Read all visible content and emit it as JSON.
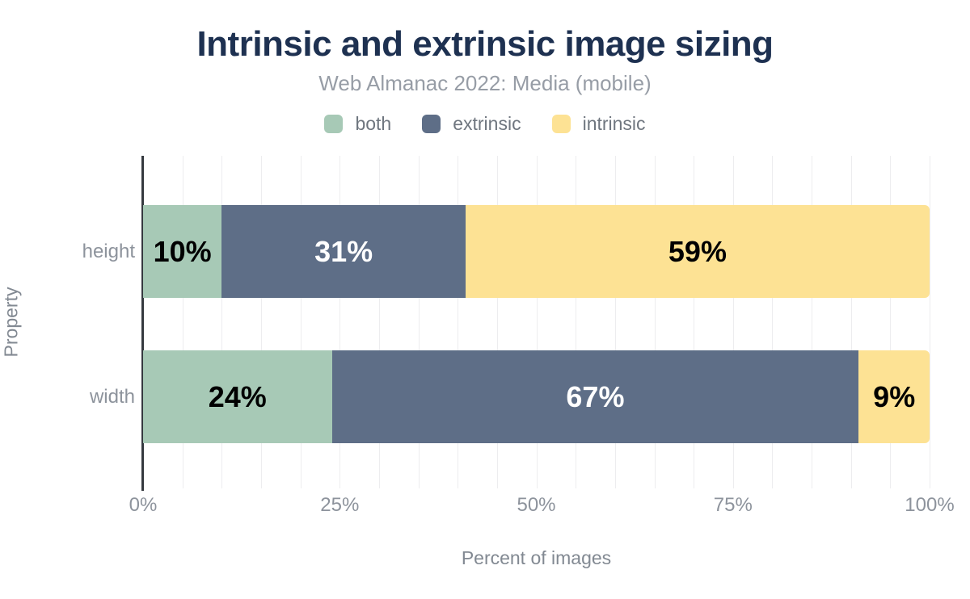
{
  "title": "Intrinsic and extrinsic image sizing",
  "subtitle": "Web Almanac 2022: Media (mobile)",
  "legend": {
    "items": [
      {
        "label": "both",
        "color": "#a7c9b6"
      },
      {
        "label": "extrinsic",
        "color": "#5e6e87"
      },
      {
        "label": "intrinsic",
        "color": "#fde294"
      }
    ]
  },
  "chart_data": {
    "type": "bar",
    "orientation": "horizontal",
    "stacked": true,
    "title": "Intrinsic and extrinsic image sizing",
    "subtitle": "Web Almanac 2022: Media (mobile)",
    "categories": [
      "height",
      "width"
    ],
    "series": [
      {
        "name": "both",
        "color": "#a7c9b6",
        "label_color": "#000000",
        "values": [
          10,
          24
        ]
      },
      {
        "name": "extrinsic",
        "color": "#5e6e87",
        "label_color": "#ffffff",
        "values": [
          31,
          67
        ]
      },
      {
        "name": "intrinsic",
        "color": "#fde294",
        "label_color": "#000000",
        "values": [
          59,
          9
        ]
      }
    ],
    "data_label_format": "percent",
    "xlabel": "Percent of images",
    "ylabel": "Property",
    "xlim": [
      0,
      100
    ],
    "xticks": [
      {
        "value": 0,
        "label": "0%"
      },
      {
        "value": 25,
        "label": "25%"
      },
      {
        "value": 50,
        "label": "50%"
      },
      {
        "value": 75,
        "label": "75%"
      },
      {
        "value": 100,
        "label": "100%"
      }
    ],
    "grid": {
      "vertical_minor_step": 5,
      "horizontal": false
    },
    "legend_position": "top"
  }
}
